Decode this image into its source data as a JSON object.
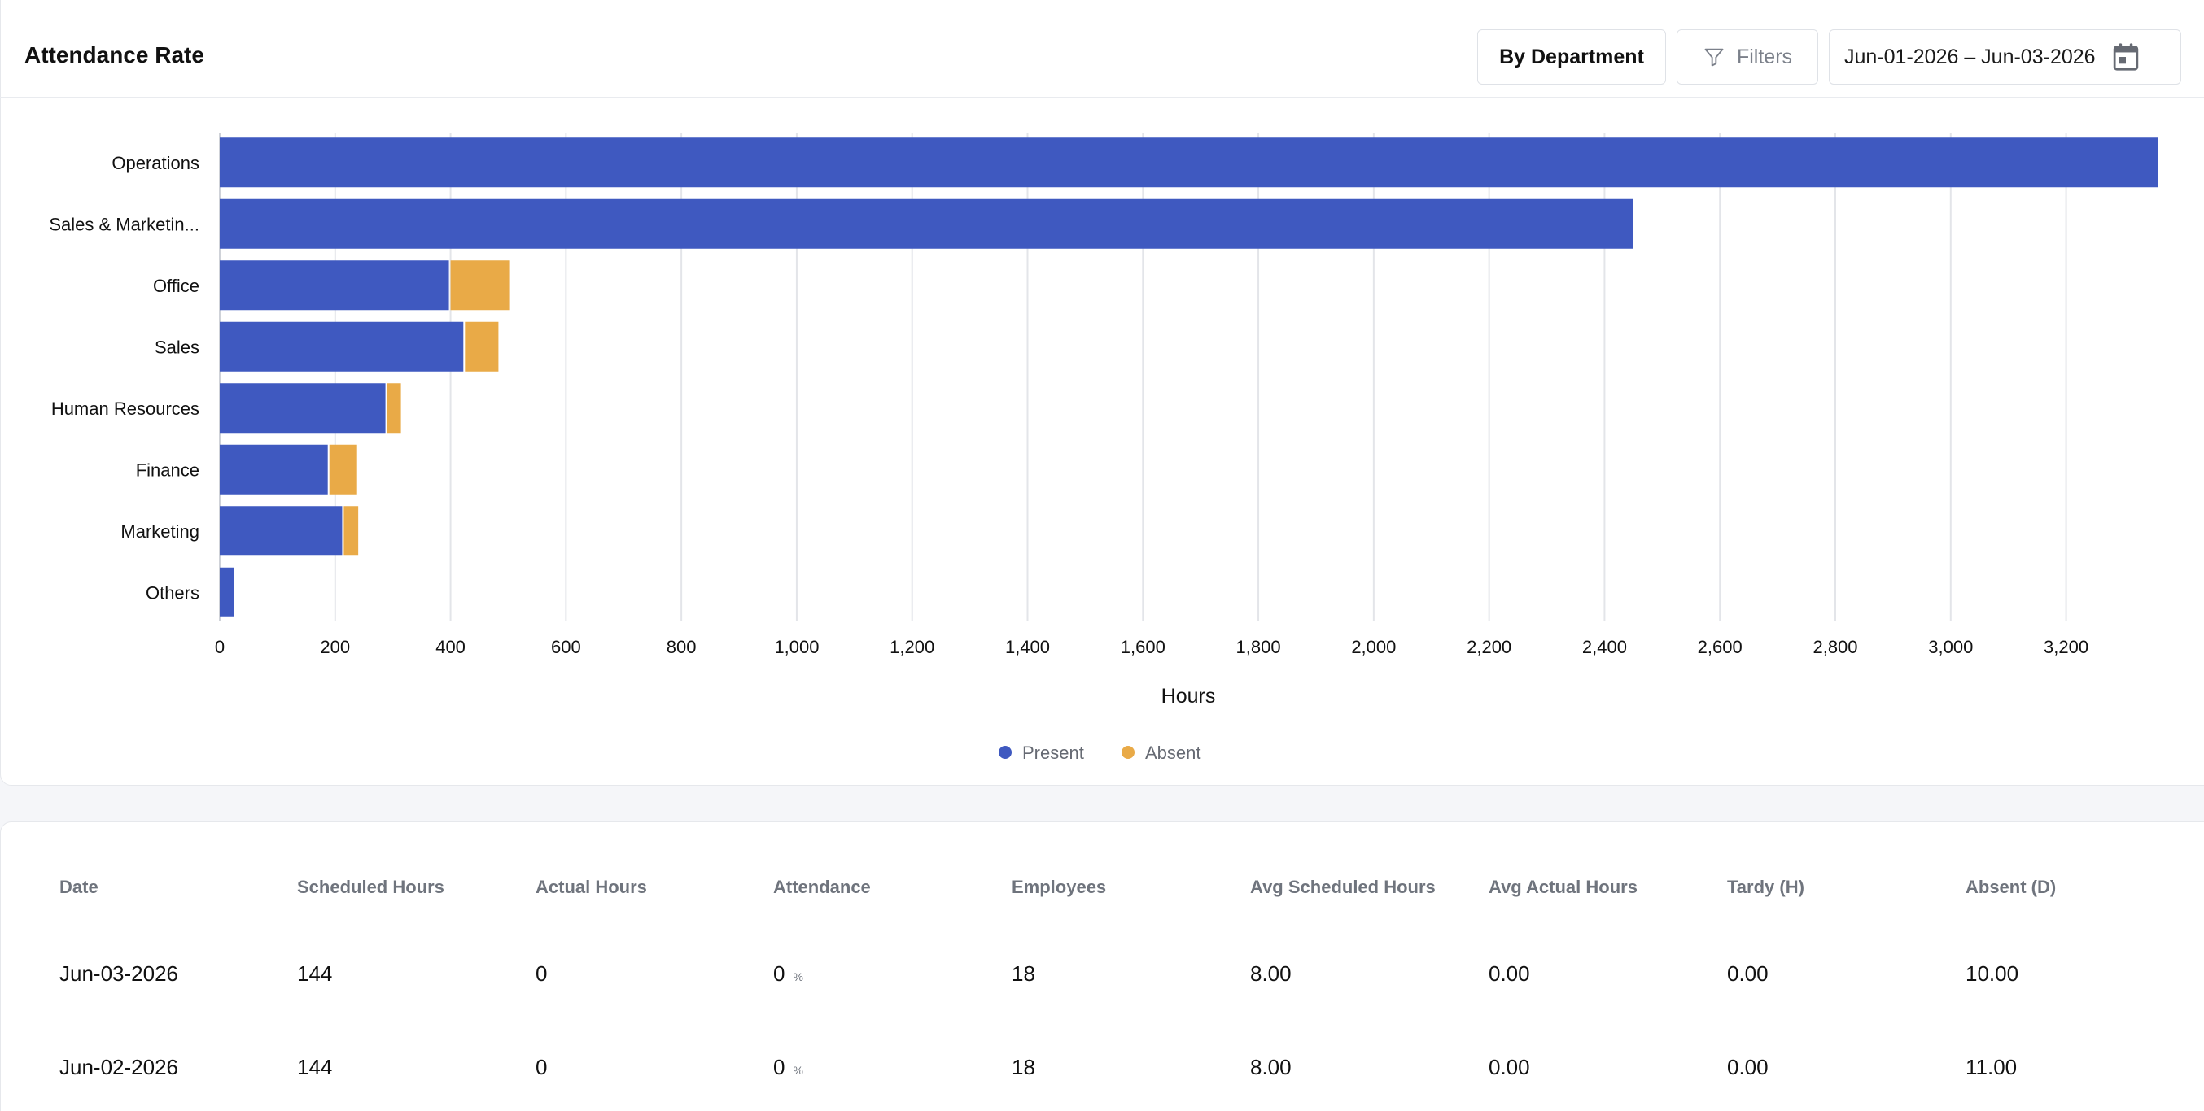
{
  "header": {
    "title": "Attendance Rate",
    "by_department_label": "By Department",
    "filters_label": "Filters",
    "date_range": "Jun-01-2026 – Jun-03-2026"
  },
  "colors": {
    "present": "#3f59c0",
    "absent": "#e9aa47",
    "grid": "#e3e5e9"
  },
  "chart_data": {
    "type": "bar",
    "orientation": "horizontal",
    "stacked": true,
    "categories": [
      "Operations",
      "Sales & Marketin...",
      "Office",
      "Sales",
      "Human Resources",
      "Finance",
      "Marketing",
      "Others"
    ],
    "series": [
      {
        "name": "Present",
        "values": [
          3360,
          2450,
          400,
          425,
          290,
          190,
          215,
          25
        ]
      },
      {
        "name": "Absent",
        "values": [
          0,
          0,
          103,
          58,
          24,
          48,
          25,
          0
        ]
      }
    ],
    "xlabel": "Hours",
    "ylabel": "",
    "xlim": [
      0,
      3360
    ],
    "xticks": [
      0,
      200,
      400,
      600,
      800,
      1000,
      1200,
      1400,
      1600,
      1800,
      2000,
      2200,
      2400,
      2600,
      2800,
      3000,
      3200
    ],
    "xtick_labels": [
      "0",
      "200",
      "400",
      "600",
      "800",
      "1,000",
      "1,200",
      "1,400",
      "1,600",
      "1,800",
      "2,000",
      "2,200",
      "2,400",
      "2,600",
      "2,800",
      "3,000",
      "3,200"
    ],
    "grid": true,
    "legend_position": "bottom-center"
  },
  "table": {
    "columns": [
      "Date",
      "Scheduled Hours",
      "Actual Hours",
      "Attendance",
      "Employees",
      "Avg Scheduled Hours",
      "Avg Actual Hours",
      "Tardy (H)",
      "Absent (D)"
    ],
    "percent_symbol": "%",
    "rows": [
      [
        "Jun-03-2026",
        "144",
        "0",
        "0",
        "18",
        "8.00",
        "0.00",
        "0.00",
        "10.00"
      ],
      [
        "Jun-02-2026",
        "144",
        "0",
        "0",
        "18",
        "8.00",
        "0.00",
        "0.00",
        "11.00"
      ]
    ]
  }
}
